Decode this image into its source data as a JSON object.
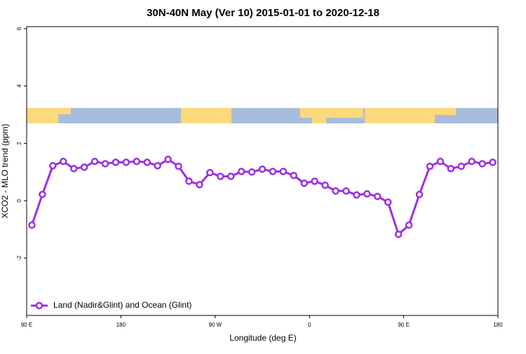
{
  "chart_data": {
    "type": "line",
    "title": "30N-40N May (Ver 10)   2015-01-01 to 2020-12-18",
    "x_label": "Longitude (deg E)",
    "y_label": "XCO2 - MLO trend (ppm)",
    "x": [
      95,
      105,
      115,
      125,
      135,
      145,
      155,
      165,
      175,
      185,
      195,
      205,
      215,
      225,
      235,
      245,
      255,
      265,
      275,
      285,
      295,
      305,
      315,
      325,
      335,
      345,
      355,
      365,
      375,
      385,
      395,
      405,
      415,
      425,
      435,
      445,
      455,
      465,
      475,
      485,
      495,
      505,
      515,
      525,
      535
    ],
    "series": [
      {
        "name": "Land (Nadir&Glint) and Ocean (Glint)",
        "color": "#9b30e0",
        "values": [
          -0.85,
          0.22,
          1.22,
          1.37,
          1.12,
          1.17,
          1.37,
          1.29,
          1.34,
          1.34,
          1.37,
          1.34,
          1.22,
          1.44,
          1.2,
          0.68,
          0.56,
          0.98,
          0.85,
          0.85,
          1.02,
          1.0,
          1.1,
          1.02,
          1.02,
          0.88,
          0.61,
          0.68,
          0.54,
          0.34,
          0.34,
          0.2,
          0.24,
          0.15,
          -0.05,
          -1.17,
          -0.85,
          0.22,
          1.2,
          1.37,
          1.12,
          1.2,
          1.37,
          1.29,
          1.34
        ]
      }
    ],
    "xlim": [
      90,
      540
    ],
    "xticks": [
      {
        "value": 90,
        "label": "90 E"
      },
      {
        "value": 180,
        "label": "180"
      },
      {
        "value": 270,
        "label": "90 W"
      },
      {
        "value": 360,
        "label": "0"
      },
      {
        "value": 450,
        "label": "90 E"
      },
      {
        "value": 540,
        "label": "180"
      }
    ],
    "ylim": [
      -4,
      6.07
    ],
    "yticks": [
      -2,
      0,
      2,
      4,
      6
    ],
    "legend": "bottom-left"
  }
}
